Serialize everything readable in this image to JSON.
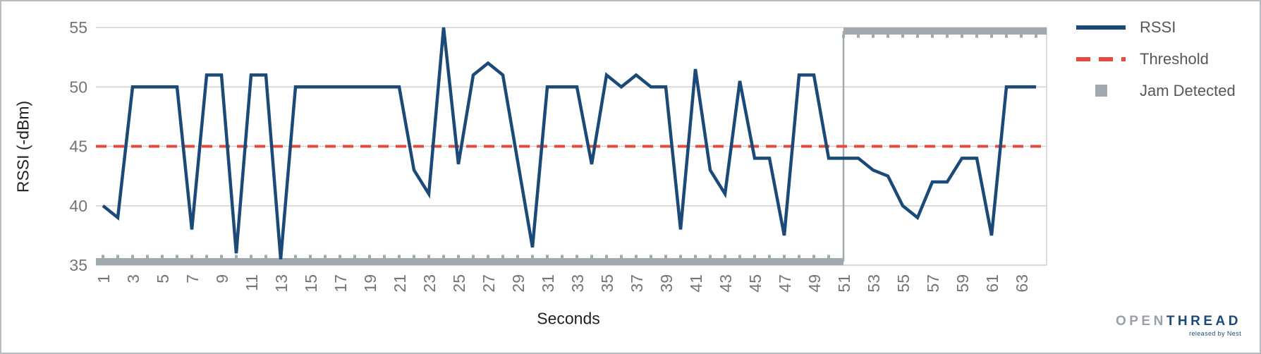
{
  "chart_data": {
    "type": "line",
    "title": "",
    "xlabel": "Seconds",
    "ylabel": "RSSI (-dBm)",
    "ylim": [
      35,
      55
    ],
    "yticks": [
      55,
      50,
      45,
      40,
      35
    ],
    "xticks": [
      1,
      3,
      5,
      7,
      9,
      11,
      13,
      15,
      17,
      19,
      21,
      23,
      25,
      27,
      29,
      31,
      33,
      35,
      37,
      39,
      41,
      43,
      45,
      47,
      49,
      51,
      53,
      55,
      57,
      59,
      61,
      63
    ],
    "x": [
      1,
      2,
      3,
      4,
      5,
      6,
      7,
      8,
      9,
      10,
      11,
      12,
      13,
      14,
      15,
      16,
      17,
      18,
      19,
      20,
      21,
      22,
      23,
      24,
      25,
      26,
      27,
      28,
      29,
      30,
      31,
      32,
      33,
      34,
      35,
      36,
      37,
      38,
      39,
      40,
      41,
      42,
      43,
      44,
      45,
      46,
      47,
      48,
      49,
      50,
      51,
      52,
      53,
      54,
      55,
      56,
      57,
      58,
      59,
      60,
      61,
      62,
      63,
      64
    ],
    "series": [
      {
        "name": "RSSI",
        "type": "line",
        "color": "#1B4A78",
        "values": [
          40,
          39,
          50,
          50,
          50,
          50,
          38,
          51,
          51,
          36,
          51,
          51,
          35.5,
          50,
          50,
          50,
          50,
          50,
          50,
          50,
          50,
          43,
          41,
          55,
          43.5,
          51,
          52,
          51,
          43.75,
          36.5,
          50,
          50,
          50,
          43.5,
          51,
          50,
          51,
          50,
          50,
          38,
          51.5,
          43,
          41,
          50.5,
          44,
          44,
          37.5,
          51,
          51,
          44,
          44,
          44,
          43,
          42.5,
          40,
          39,
          42,
          42,
          44,
          44,
          37.5,
          50,
          50,
          50
        ]
      },
      {
        "name": "Threshold",
        "type": "horizontal-dashed-line",
        "color": "#E64A3C",
        "value": 45
      },
      {
        "name": "Jam Detected",
        "type": "step-band",
        "color": "#A0A9AE",
        "low_value": 35.3,
        "high_value": 54.7,
        "start_second": 1,
        "jump_at_second": 51,
        "end_second": 64
      }
    ],
    "legend_position": "right",
    "grid": "horizontal",
    "colors": {
      "grid_line": "#d2d2d2",
      "axis_line": "#c8cdd0",
      "tick_text": "#757575",
      "axis_title_text": "#1f1f1f",
      "legend_text": "#54585c",
      "background": "#ffffff",
      "frame_border": "#b6bcc0"
    }
  },
  "legend": {
    "items": [
      {
        "label": "RSSI",
        "swatch": "blue-line"
      },
      {
        "label": "Threshold",
        "swatch": "red-dashed-line"
      },
      {
        "label": "Jam Detected",
        "swatch": "gray-square"
      }
    ]
  },
  "logo": {
    "open": "OPEN",
    "thread": "THREAD",
    "tagline": "released by Nest"
  }
}
